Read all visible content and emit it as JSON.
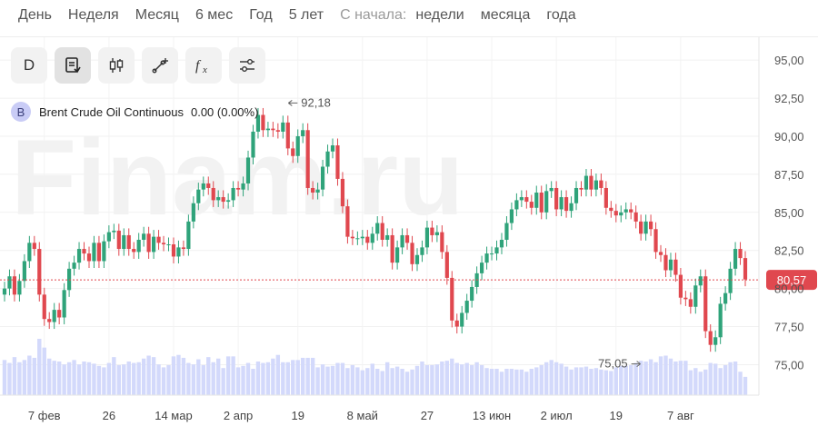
{
  "periods": {
    "items": [
      "День",
      "Неделя",
      "Месяц",
      "6 мес",
      "Год",
      "5 лет"
    ],
    "since_label": "С начала:",
    "since_items": [
      "недели",
      "месяца",
      "года"
    ]
  },
  "toolbar": {
    "interval_label": "D",
    "buttons": [
      "chart-type-icon",
      "candlestick-icon",
      "draw-line-icon",
      "indicator-fx-icon",
      "settings-sliders-icon"
    ]
  },
  "legend": {
    "badge": "B",
    "name": "Brent Crude Oil Continuous",
    "change": "0.00 (0.00%)"
  },
  "watermark": "Finam.ru",
  "colors": {
    "up": "#2fa37a",
    "down": "#e0484f",
    "volume": "#d3d9fb",
    "last_price": "#e0484f"
  },
  "chart_data": {
    "type": "candlestick",
    "title": "Brent Crude Oil Continuous",
    "yaxis": {
      "min": 73.0,
      "max": 96.5,
      "ticks": [
        "95,00",
        "92,50",
        "90,00",
        "87,50",
        "85,00",
        "82,50",
        "80,00",
        "77,50",
        "75,00"
      ],
      "tick_values": [
        95,
        92.5,
        90,
        87.5,
        85,
        82.5,
        80,
        77.5,
        75
      ]
    },
    "xaxis": {
      "labels": [
        "7 фев",
        "26",
        "14 мар",
        "2 апр",
        "19",
        "8 май",
        "27",
        "13 июн",
        "2 июл",
        "19",
        "7 авг"
      ],
      "label_index": [
        8,
        21,
        34,
        47,
        59,
        72,
        85,
        98,
        111,
        123,
        136
      ]
    },
    "last_price": {
      "value": 80.57,
      "label": "80,57"
    },
    "annotations": [
      {
        "label": "92,18",
        "value": 92.18,
        "index": 56,
        "kind": "max"
      },
      {
        "label": "75,05",
        "value": 75.05,
        "index": 129,
        "kind": "min"
      }
    ],
    "closes": [
      80.0,
      80.8,
      79.6,
      80.5,
      81.8,
      83.0,
      82.6,
      79.6,
      78.0,
      77.8,
      78.6,
      78.1,
      79.9,
      81.3,
      81.7,
      82.6,
      82.3,
      81.8,
      83.0,
      81.8,
      83.1,
      83.7,
      83.8,
      82.6,
      83.5,
      82.6,
      82.4,
      83.2,
      83.6,
      82.4,
      83.4,
      83.0,
      82.9,
      82.9,
      82.1,
      82.7,
      82.6,
      84.4,
      85.6,
      86.5,
      86.9,
      86.6,
      85.8,
      86.0,
      85.7,
      85.8,
      86.6,
      86.5,
      86.9,
      88.6,
      90.3,
      91.4,
      90.4,
      90.5,
      90.4,
      90.3,
      90.9,
      89.2,
      88.7,
      90.0,
      90.4,
      86.6,
      86.3,
      86.5,
      88.0,
      89.0,
      89.4,
      87.2,
      85.4,
      83.4,
      83.3,
      83.3,
      83.4,
      83.0,
      83.6,
      84.3,
      83.2,
      83.5,
      81.7,
      82.7,
      83.5,
      83.0,
      81.6,
      82.2,
      82.7,
      84.0,
      83.5,
      83.7,
      82.4,
      80.7,
      77.9,
      77.5,
      78.4,
      79.2,
      80.1,
      81.0,
      81.7,
      82.3,
      82.3,
      82.7,
      83.2,
      84.3,
      85.2,
      85.8,
      86.0,
      85.7,
      85.3,
      86.3,
      85.0,
      86.4,
      86.6,
      85.2,
      86.0,
      85.1,
      85.6,
      86.6,
      86.5,
      87.4,
      86.5,
      87.1,
      86.6,
      85.3,
      85.1,
      84.8,
      85.0,
      85.2,
      85.0,
      84.4,
      83.6,
      84.4,
      83.9,
      82.4,
      82.2,
      81.2,
      81.9,
      80.9,
      79.4,
      79.3,
      78.8,
      80.2,
      80.8,
      77.2,
      76.3,
      76.8,
      79.0,
      79.7,
      81.3,
      82.6,
      82.0,
      80.6
    ],
    "volumes": [
      48,
      44,
      52,
      45,
      48,
      54,
      51,
      77,
      65,
      50,
      47,
      46,
      42,
      45,
      48,
      42,
      46,
      45,
      43,
      40,
      38,
      44,
      52,
      41,
      42,
      46,
      44,
      45,
      50,
      54,
      52,
      42,
      38,
      41,
      53,
      55,
      51,
      44,
      42,
      49,
      41,
      52,
      45,
      50,
      37,
      53,
      53,
      38,
      40,
      44,
      36,
      46,
      44,
      45,
      50,
      55,
      45,
      45,
      48,
      48,
      51,
      51,
      51,
      38,
      42,
      39,
      40,
      44,
      44,
      37,
      41,
      38,
      34,
      37,
      43,
      36,
      33,
      45,
      37,
      39,
      36,
      32,
      35,
      40,
      46,
      41,
      41,
      42,
      46,
      47,
      50,
      44,
      42,
      44,
      41,
      45,
      41,
      37,
      36,
      36,
      32,
      36,
      36,
      35,
      35,
      32,
      36,
      38,
      41,
      45,
      48,
      45,
      43,
      39,
      35,
      38,
      38,
      39,
      36,
      37,
      35,
      34,
      33,
      38,
      40,
      40,
      41,
      44,
      47,
      46,
      49,
      45,
      53,
      54,
      50,
      46,
      47,
      47,
      34,
      37,
      32,
      35,
      44,
      43,
      37,
      41,
      45,
      46,
      32,
      25
    ]
  }
}
